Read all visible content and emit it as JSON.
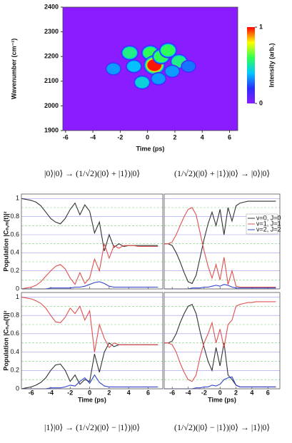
{
  "chart_data": [
    {
      "type": "heatmap",
      "xlabel": "Time (ps)",
      "ylabel": "Wavenumber (cm⁻¹)",
      "xlim": [
        -6.2,
        6.6
      ],
      "xticks": [
        -6,
        -4,
        -2,
        0,
        2,
        4,
        6
      ],
      "ylim": [
        1900,
        2400
      ],
      "yticks": [
        1900,
        2000,
        2100,
        2200,
        2300,
        2400
      ],
      "x": [
        -2.5,
        -1.3,
        -1.0,
        -0.4,
        0.2,
        0.5,
        1.0,
        1.5,
        2.3,
        1.8,
        3.0,
        0.8
      ],
      "y": [
        2150,
        2215,
        2160,
        2095,
        2215,
        2165,
        2200,
        2225,
        2180,
        2140,
        2160,
        2110
      ],
      "values": [
        0.35,
        0.55,
        0.4,
        0.45,
        0.6,
        1.0,
        0.6,
        0.6,
        0.55,
        0.35,
        0.3,
        0.35
      ],
      "zlim": [
        0,
        1
      ],
      "zticks": [
        0,
        1
      ],
      "colorbar_label": "Intensity (arb.)",
      "colormap": [
        "#8a1cff",
        "#2a2cff",
        "#00c8ff",
        "#30ff50",
        "#ffff00",
        "#ff0000"
      ]
    },
    {
      "type": "line",
      "title": "|0⟩|0⟩ → (1/√2)(|0⟩ + |1⟩)|0⟩",
      "ylabel": "Population |Cₙ,ₘ(t)|²",
      "xlim": [
        -7,
        7.5
      ],
      "xticks": [
        -6,
        -4,
        -2,
        0,
        2,
        4,
        6
      ],
      "show_xtick_labels": false,
      "ylim": [
        0,
        1.05
      ],
      "yticks": [
        0.0,
        0.2,
        0.4,
        0.6,
        0.8,
        1.0
      ],
      "show_ytick_labels": true,
      "yminorticks": [
        0.1,
        0.3,
        0.5,
        0.7,
        0.9
      ],
      "x": [
        -7,
        -6.5,
        -6,
        -5.5,
        -5,
        -4.5,
        -4,
        -3.5,
        -3,
        -2.5,
        -2,
        -1.5,
        -1,
        -0.5,
        0,
        0.5,
        1,
        1.5,
        2,
        2.5,
        3,
        3.5,
        4,
        4.5,
        5,
        5.5,
        6,
        6.5,
        7
      ],
      "series": [
        {
          "name": "ν=0, J=0",
          "color": "#333333",
          "values": [
            1.0,
            0.99,
            0.98,
            0.96,
            0.92,
            0.85,
            0.78,
            0.74,
            0.72,
            0.78,
            0.88,
            0.95,
            0.82,
            0.93,
            0.86,
            0.62,
            0.74,
            0.42,
            0.6,
            0.46,
            0.5,
            0.47,
            0.48,
            0.48,
            0.48,
            0.48,
            0.48,
            0.48,
            0.48
          ]
        },
        {
          "name": "ν=1, J=1",
          "color": "#e05050",
          "values": [
            0,
            0.01,
            0.02,
            0.04,
            0.08,
            0.14,
            0.2,
            0.25,
            0.27,
            0.22,
            0.12,
            0.05,
            0.18,
            0.06,
            0.12,
            0.33,
            0.2,
            0.5,
            0.34,
            0.48,
            0.45,
            0.48,
            0.48,
            0.48,
            0.47,
            0.47,
            0.47,
            0.47,
            0.47
          ]
        },
        {
          "name": "ν=2, J=2",
          "color": "#3344cc",
          "values": [
            0,
            0,
            0,
            0,
            0,
            0,
            0.01,
            0.01,
            0.01,
            0.01,
            0.01,
            0.02,
            0.02,
            0.03,
            0.05,
            0.07,
            0.08,
            0.06,
            0.03,
            0.02,
            0.02,
            0.02,
            0.02,
            0.02,
            0.02,
            0.02,
            0.02,
            0.02,
            0.02
          ]
        }
      ]
    },
    {
      "type": "line",
      "title": "(1/√2)(|0⟩ + |1⟩)|0⟩ → |0⟩|0⟩",
      "legend": "upper right",
      "xlim": [
        -7,
        7.5
      ],
      "xticks": [
        -6,
        -4,
        -2,
        0,
        2,
        4,
        6
      ],
      "show_xtick_labels": false,
      "ylim": [
        0,
        1.05
      ],
      "yticks": [
        0.0,
        0.2,
        0.4,
        0.6,
        0.8,
        1.0
      ],
      "show_ytick_labels": false,
      "yminorticks": [
        0.1,
        0.3,
        0.5,
        0.7,
        0.9
      ],
      "x": [
        -7,
        -6.5,
        -6,
        -5.5,
        -5,
        -4.5,
        -4,
        -3.5,
        -3,
        -2.5,
        -2,
        -1.5,
        -1,
        -0.5,
        0,
        0.5,
        1,
        1.5,
        2,
        2.5,
        3,
        3.5,
        4,
        4.5,
        5,
        5.5,
        6,
        6.5,
        7
      ],
      "series": [
        {
          "name": "ν=0, J=0",
          "color": "#333333",
          "values": [
            0.5,
            0.5,
            0.48,
            0.4,
            0.3,
            0.18,
            0.08,
            0.06,
            0.15,
            0.35,
            0.55,
            0.72,
            0.85,
            0.7,
            0.88,
            0.6,
            0.9,
            0.75,
            0.92,
            0.95,
            0.96,
            0.97,
            0.97,
            0.97,
            0.97,
            0.97,
            0.97,
            0.97,
            0.97
          ]
        },
        {
          "name": "ν=1, J=1",
          "color": "#e05050",
          "values": [
            0.5,
            0.5,
            0.52,
            0.6,
            0.7,
            0.8,
            0.88,
            0.9,
            0.82,
            0.62,
            0.42,
            0.25,
            0.12,
            0.27,
            0.1,
            0.35,
            0.05,
            0.2,
            0.03,
            0.02,
            0.02,
            0.02,
            0.02,
            0.02,
            0.02,
            0.02,
            0.02,
            0.02,
            0.02
          ]
        },
        {
          "name": "ν=2, J=2",
          "color": "#3344cc",
          "values": [
            0,
            0,
            0,
            0,
            0,
            0,
            0,
            0.01,
            0.01,
            0.01,
            0.02,
            0.02,
            0.03,
            0.04,
            0.03,
            0.05,
            0.04,
            0.02,
            0.01,
            0.01,
            0.01,
            0.01,
            0.01,
            0.01,
            0.01,
            0.01,
            0.01,
            0.01,
            0.01
          ]
        }
      ]
    },
    {
      "type": "line",
      "title": "|1⟩|0⟩ → (1/√2)(|0⟩ − |1⟩)|0⟩",
      "ylabel": "Population |Cₙ,ₘ(t)|²",
      "xlabel": "Time (ps)",
      "xlim": [
        -7,
        7.5
      ],
      "xticks": [
        -6,
        -4,
        -2,
        0,
        2,
        4,
        6
      ],
      "show_xtick_labels": true,
      "ylim": [
        0,
        1.05
      ],
      "yticks": [
        0.0,
        0.2,
        0.4,
        0.6,
        0.8,
        1.0
      ],
      "show_ytick_labels": true,
      "yminorticks": [
        0.1,
        0.3,
        0.5,
        0.7,
        0.9
      ],
      "x": [
        -7,
        -6.5,
        -6,
        -5.5,
        -5,
        -4.5,
        -4,
        -3.5,
        -3,
        -2.5,
        -2,
        -1.5,
        -1,
        -0.5,
        0,
        0.5,
        1,
        1.5,
        2,
        2.5,
        3,
        3.5,
        4,
        4.5,
        5,
        5.5,
        6,
        6.5,
        7
      ],
      "series": [
        {
          "name": "ν=0, J=0",
          "color": "#333333",
          "values": [
            0,
            0.01,
            0.02,
            0.04,
            0.07,
            0.12,
            0.2,
            0.26,
            0.27,
            0.2,
            0.08,
            0.15,
            0.05,
            0.1,
            0.08,
            0.38,
            0.18,
            0.4,
            0.5,
            0.46,
            0.48,
            0.48,
            0.48,
            0.48,
            0.48,
            0.48,
            0.48,
            0.48,
            0.48
          ]
        },
        {
          "name": "ν=1, J=1",
          "color": "#e05050",
          "values": [
            1.0,
            0.99,
            0.98,
            0.96,
            0.93,
            0.88,
            0.8,
            0.73,
            0.72,
            0.78,
            0.88,
            0.82,
            0.9,
            0.75,
            0.85,
            0.4,
            0.7,
            0.55,
            0.45,
            0.5,
            0.48,
            0.48,
            0.48,
            0.48,
            0.48,
            0.48,
            0.48,
            0.48,
            0.48
          ]
        },
        {
          "name": "ν=2, J=2",
          "color": "#3344cc",
          "values": [
            0,
            0,
            0,
            0,
            0,
            0,
            0.01,
            0.01,
            0.01,
            0.02,
            0.04,
            0.03,
            0.08,
            0.12,
            0.06,
            0.15,
            0.07,
            0.03,
            0.02,
            0.02,
            0.02,
            0.02,
            0.02,
            0.02,
            0.02,
            0.02,
            0.02,
            0.02,
            0.02
          ]
        }
      ]
    },
    {
      "type": "line",
      "title": "(1/√2)(|0⟩ − |1⟩)|0⟩ → |1⟩|0⟩",
      "xlabel": "Time (ps)",
      "xlim": [
        -7,
        7.5
      ],
      "xticks": [
        -6,
        -4,
        -2,
        0,
        2,
        4,
        6
      ],
      "show_xtick_labels": true,
      "ylim": [
        0,
        1.05
      ],
      "yticks": [
        0.0,
        0.2,
        0.4,
        0.6,
        0.8,
        1.0
      ],
      "show_ytick_labels": false,
      "yminorticks": [
        0.1,
        0.3,
        0.5,
        0.7,
        0.9
      ],
      "x": [
        -7,
        -6.5,
        -6,
        -5.5,
        -5,
        -4.5,
        -4,
        -3.5,
        -3,
        -2.5,
        -2,
        -1.5,
        -1,
        -0.5,
        0,
        0.5,
        1,
        1.5,
        2,
        2.5,
        3,
        3.5,
        4,
        4.5,
        5,
        5.5,
        6,
        6.5,
        7
      ],
      "series": [
        {
          "name": "ν=0, J=0",
          "color": "#333333",
          "values": [
            0.5,
            0.5,
            0.52,
            0.6,
            0.72,
            0.82,
            0.9,
            0.92,
            0.82,
            0.62,
            0.45,
            0.3,
            0.2,
            0.45,
            0.25,
            0.5,
            0.15,
            0.1,
            0.04,
            0.02,
            0.02,
            0.02,
            0.02,
            0.02,
            0.02,
            0.02,
            0.02,
            0.02,
            0.02
          ]
        },
        {
          "name": "ν=1, J=1",
          "color": "#e05050",
          "values": [
            0.5,
            0.5,
            0.48,
            0.4,
            0.28,
            0.18,
            0.1,
            0.08,
            0.15,
            0.35,
            0.5,
            0.6,
            0.72,
            0.5,
            0.65,
            0.45,
            0.7,
            0.75,
            0.9,
            0.92,
            0.93,
            0.94,
            0.94,
            0.95,
            0.95,
            0.95,
            0.95,
            0.95,
            0.95
          ]
        },
        {
          "name": "ν=2, J=2",
          "color": "#3344cc",
          "values": [
            0,
            0,
            0,
            0,
            0,
            0,
            0,
            0,
            0.01,
            0.01,
            0.02,
            0.02,
            0.04,
            0.03,
            0.05,
            0.1,
            0.12,
            0.13,
            0.04,
            0.02,
            0.02,
            0.02,
            0.02,
            0.02,
            0.02,
            0.02,
            0.02,
            0.02,
            0.02
          ]
        }
      ]
    }
  ]
}
